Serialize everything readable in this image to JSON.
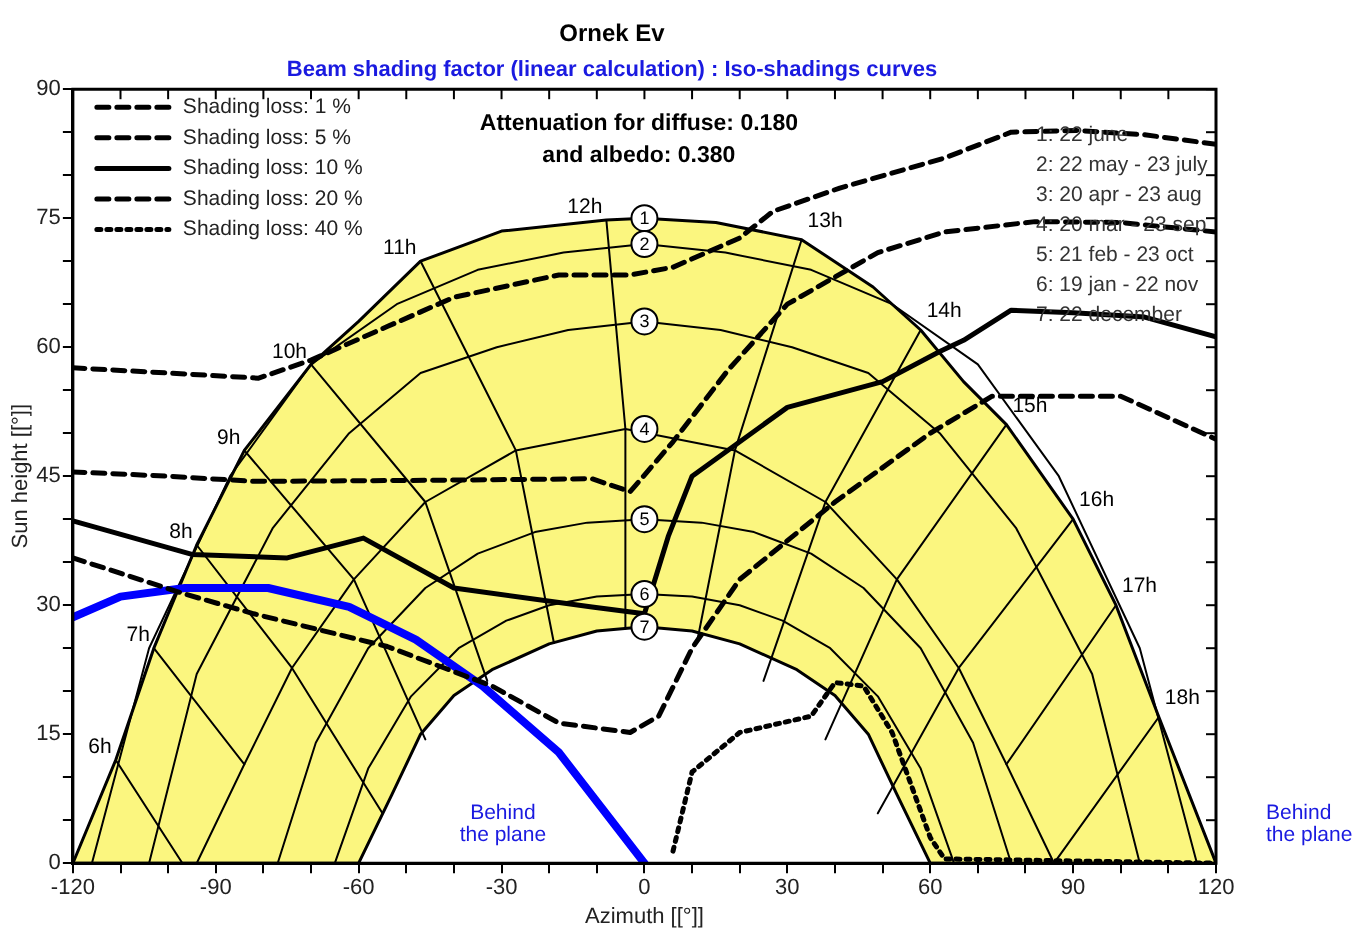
{
  "chart_data": {
    "type": "line",
    "title": "Ornek Ev",
    "subtitle": "Beam shading factor (linear calculation) : Iso-shadings curves",
    "xlabel": "Azimuth [[°]]",
    "ylabel": "Sun height [[°]]",
    "xlim": [
      -120,
      120
    ],
    "ylim": [
      0,
      90
    ],
    "xticks": [
      -120,
      {
        "value": -110,
        "label": null
      },
      {
        "value": -100,
        "label": null
      },
      -90,
      {
        "value": -80,
        "label": null
      },
      {
        "value": -70,
        "label": null
      },
      -60,
      {
        "value": -50,
        "label": null
      },
      {
        "value": -40,
        "label": null
      },
      -30,
      {
        "value": -20,
        "label": null
      },
      {
        "value": -10,
        "label": null
      },
      0,
      {
        "value": 10,
        "label": null
      },
      {
        "value": 20,
        "label": null
      },
      30,
      {
        "value": 40,
        "label": null
      },
      {
        "value": 50,
        "label": null
      },
      60,
      {
        "value": 70,
        "label": null
      },
      {
        "value": 80,
        "label": null
      },
      90,
      {
        "value": 100,
        "label": null
      },
      {
        "value": 110,
        "label": null
      },
      120
    ],
    "yticks": [
      0,
      {
        "value": 5,
        "label": null
      },
      {
        "value": 10,
        "label": null
      },
      15,
      {
        "value": 20,
        "label": null
      },
      {
        "value": 25,
        "label": null
      },
      30,
      {
        "value": 35,
        "label": null
      },
      {
        "value": 40,
        "label": null
      },
      45,
      {
        "value": 50,
        "label": null
      },
      {
        "value": 55,
        "label": null
      },
      60,
      {
        "value": 65,
        "label": null
      },
      {
        "value": 70,
        "label": null
      },
      75,
      {
        "value": 80,
        "label": null
      },
      {
        "value": 85,
        "label": null
      },
      90
    ],
    "legend": "top left",
    "series": [
      {
        "name": "Shading loss: 1 %",
        "color": "#000000",
        "line_style": "dashed",
        "x": [
          -120,
          -100,
          -81,
          -70,
          -54,
          -40,
          -18,
          -3,
          6,
          20,
          27,
          41,
          63,
          77,
          91,
          105,
          120
        ],
        "values": [
          57.6,
          57,
          56.4,
          58.5,
          62.4,
          65.8,
          68.4,
          68.4,
          69.3,
          72.7,
          75.8,
          78.5,
          82,
          85,
          85.2,
          84.7,
          83.6
        ]
      },
      {
        "name": "Shading loss: 5 %",
        "color": "#000000",
        "line_style": "dashed",
        "x": [
          -120,
          -100,
          -82,
          -50,
          -11,
          -3,
          6,
          17.5,
          30,
          49,
          63,
          82,
          100,
          120
        ],
        "values": [
          45.5,
          45,
          44.4,
          44.5,
          44.7,
          43.2,
          49,
          57.3,
          65,
          71,
          73.4,
          74.6,
          74.5,
          73.4
        ]
      },
      {
        "name": "Shading loss: 10 %",
        "color": "#000000",
        "line_style": "solid",
        "x": [
          -120,
          -95,
          -75,
          -59,
          -40,
          -11,
          0,
          5,
          10,
          30,
          50,
          62,
          67,
          77,
          90,
          105,
          120
        ],
        "values": [
          39.8,
          35.9,
          35.5,
          37.8,
          32,
          29.8,
          29,
          38,
          45,
          53,
          56,
          59.5,
          60.8,
          64.3,
          64,
          63.5,
          61.2
        ]
      },
      {
        "name": "Shading loss: 20 %",
        "color": "#000000",
        "line_style": "dashed",
        "x": [
          -120,
          -96.5,
          -82,
          -54,
          -32,
          -18,
          -3,
          3,
          10,
          20,
          40,
          60,
          73,
          100,
          120
        ],
        "values": [
          35.5,
          31.3,
          29,
          25.2,
          20.6,
          16.3,
          15.2,
          17.1,
          25,
          33,
          42,
          50,
          54.3,
          54.3,
          49.3
        ]
      },
      {
        "name": "Shading loss: 40 %",
        "color": "#000000",
        "line_style": "dotted",
        "x": [
          6,
          10,
          20,
          35,
          40,
          46,
          52,
          60,
          63,
          120
        ],
        "values": [
          1.4,
          10.6,
          15.2,
          17.1,
          21,
          20.6,
          15.2,
          3,
          0.5,
          0
        ]
      },
      {
        "color": "#0000ff",
        "line_style": "solid",
        "x": [
          -120,
          -110,
          -96.5,
          -79,
          -62,
          -48,
          -34,
          -18,
          0
        ],
        "values": [
          28.6,
          31,
          32,
          32,
          29.8,
          26,
          20.6,
          12.9,
          0
        ]
      },
      {
        "type": "area",
        "color": "#fbf67f",
        "x": [
          -120,
          -111,
          -103,
          -94,
          -84,
          -70,
          -60,
          -47,
          -30,
          -8,
          0,
          15,
          33,
          48,
          58,
          67,
          76,
          90,
          99,
          108,
          120
        ],
        "values": [
          0,
          12,
          25,
          37,
          48,
          58,
          63,
          70,
          73.5,
          74.8,
          75,
          74.5,
          72.5,
          67,
          62,
          56,
          51,
          40,
          30,
          17,
          0
        ]
      },
      {
        "type": "area",
        "color": "#ffffff",
        "x": [
          -120,
          -60,
          -53,
          -47,
          -40,
          -32,
          -20,
          -10,
          0,
          10,
          20,
          32,
          40,
          47,
          53,
          60,
          120
        ],
        "values": [
          0,
          0,
          8,
          15,
          19.5,
          22.5,
          25.5,
          27,
          27.5,
          27,
          25.5,
          22.5,
          19.5,
          15,
          8,
          0,
          0
        ]
      },
      {
        "color": "#000000",
        "x": [
          -116,
          -104,
          -87,
          -70,
          -52,
          -35,
          -17,
          0,
          17,
          35,
          52,
          70,
          87,
          104,
          116
        ],
        "values": [
          0,
          25,
          45,
          58,
          65,
          69,
          71,
          72,
          71,
          69,
          65,
          58,
          45,
          25,
          0
        ]
      },
      {
        "color": "#000000",
        "x": [
          -104,
          -94,
          -78,
          -62,
          -47,
          -31,
          -16,
          0,
          16,
          31,
          47,
          62,
          78,
          94,
          104
        ],
        "values": [
          0,
          22,
          39,
          50,
          57,
          60,
          62,
          63,
          62,
          60,
          57,
          50,
          39,
          22,
          0
        ]
      },
      {
        "color": "#000000",
        "x": [
          -94,
          -84,
          -74,
          -61,
          -46,
          -27,
          -4,
          19,
          38,
          53,
          66,
          76,
          86
        ],
        "values": [
          0,
          11.5,
          22.7,
          33,
          42,
          48,
          50.5,
          48,
          42,
          33,
          22.7,
          11.5,
          0
        ]
      },
      {
        "color": "#000000",
        "x": [
          -77,
          -69,
          -58,
          -46,
          -35,
          -23,
          -12,
          0,
          12,
          23,
          35,
          46,
          58,
          69,
          77
        ],
        "values": [
          0,
          14,
          25,
          32,
          36,
          38.5,
          39.6,
          40,
          39.6,
          38.5,
          36,
          32,
          25,
          14,
          0
        ]
      },
      {
        "color": "#000000",
        "x": [
          -65,
          -58,
          -49,
          -39,
          -29,
          -20,
          -10,
          0,
          10,
          20,
          29,
          39,
          49,
          58,
          65
        ],
        "values": [
          0,
          11,
          19.4,
          25,
          28.2,
          30,
          31,
          31.3,
          31,
          30,
          28.2,
          25,
          19.4,
          11,
          0
        ]
      },
      {
        "color": "#000000",
        "x": [
          -111,
          -97
        ],
        "values": [
          12,
          0
        ]
      },
      {
        "color": "#000000",
        "x": [
          -103,
          -84
        ],
        "values": [
          25,
          11.5
        ]
      },
      {
        "color": "#000000",
        "x": [
          -94,
          -74,
          -55
        ],
        "values": [
          37,
          22.7,
          5.8
        ]
      },
      {
        "color": "#000000",
        "x": [
          -84,
          -61,
          -46
        ],
        "values": [
          48,
          33,
          14.4
        ]
      },
      {
        "color": "#000000",
        "x": [
          -70,
          -46,
          -33
        ],
        "values": [
          58,
          42,
          21.2
        ]
      },
      {
        "color": "#000000",
        "x": [
          -47,
          -27,
          -19
        ],
        "values": [
          70,
          48,
          25.6
        ]
      },
      {
        "color": "#000000",
        "x": [
          -8,
          -4,
          -4
        ],
        "values": [
          74.8,
          50.5,
          27.3
        ]
      },
      {
        "color": "#000000",
        "x": [
          33,
          19,
          11
        ],
        "values": [
          72.5,
          48,
          25.6
        ]
      },
      {
        "color": "#000000",
        "x": [
          58,
          38,
          25
        ],
        "values": [
          62,
          42,
          21.2
        ]
      },
      {
        "color": "#000000",
        "x": [
          76,
          53,
          38
        ],
        "values": [
          51,
          33,
          14.4
        ]
      },
      {
        "color": "#000000",
        "x": [
          90,
          66,
          49
        ],
        "values": [
          40,
          22.7,
          5.8
        ]
      },
      {
        "color": "#000000",
        "x": [
          99,
          76
        ],
        "values": [
          30,
          11.5
        ]
      },
      {
        "color": "#000000",
        "x": [
          108,
          86
        ],
        "values": [
          17,
          0
        ]
      }
    ],
    "annotations": [
      "Attenuation for diffuse: 0.180",
      "and albedo: 0.380",
      "1: 22 june",
      "2: 22 may - 23 july",
      "3: 20 apr - 23 aug",
      "4: 20 mar - 23 sep",
      "5: 21 feb - 23 oct",
      "6: 19 jan - 22 nov",
      "7: 22 december",
      "Behind the plane",
      "Behind the plane",
      {
        "text": "1",
        "x": 0,
        "y": 75
      },
      {
        "text": "2",
        "x": 0,
        "y": 72
      },
      {
        "text": "3",
        "x": 0,
        "y": 63
      },
      {
        "text": "4",
        "x": 0,
        "y": 50.5
      },
      {
        "text": "5",
        "x": 0,
        "y": 40
      },
      {
        "text": "6",
        "x": 0,
        "y": 31.3
      },
      {
        "text": "7",
        "x": 0,
        "y": 27.5
      },
      {
        "text": "6h",
        "x": -111,
        "y": 12
      },
      {
        "text": "7h",
        "x": -103,
        "y": 25
      },
      {
        "text": "8h",
        "x": -94,
        "y": 37
      },
      {
        "text": "9h",
        "x": -84,
        "y": 48
      },
      {
        "text": "10h",
        "x": -70,
        "y": 58
      },
      {
        "text": "11h",
        "x": -47,
        "y": 70
      },
      {
        "text": "12h",
        "x": -8,
        "y": 74.8
      },
      {
        "text": "13h",
        "x": 33,
        "y": 72.5
      },
      {
        "text": "14h",
        "x": 58,
        "y": 62
      },
      {
        "text": "15h",
        "x": 76,
        "y": 51
      },
      {
        "text": "16h",
        "x": 90,
        "y": 40
      },
      {
        "text": "17h",
        "x": 99,
        "y": 30
      },
      {
        "text": "18h",
        "x": 108,
        "y": 17
      }
    ]
  }
}
